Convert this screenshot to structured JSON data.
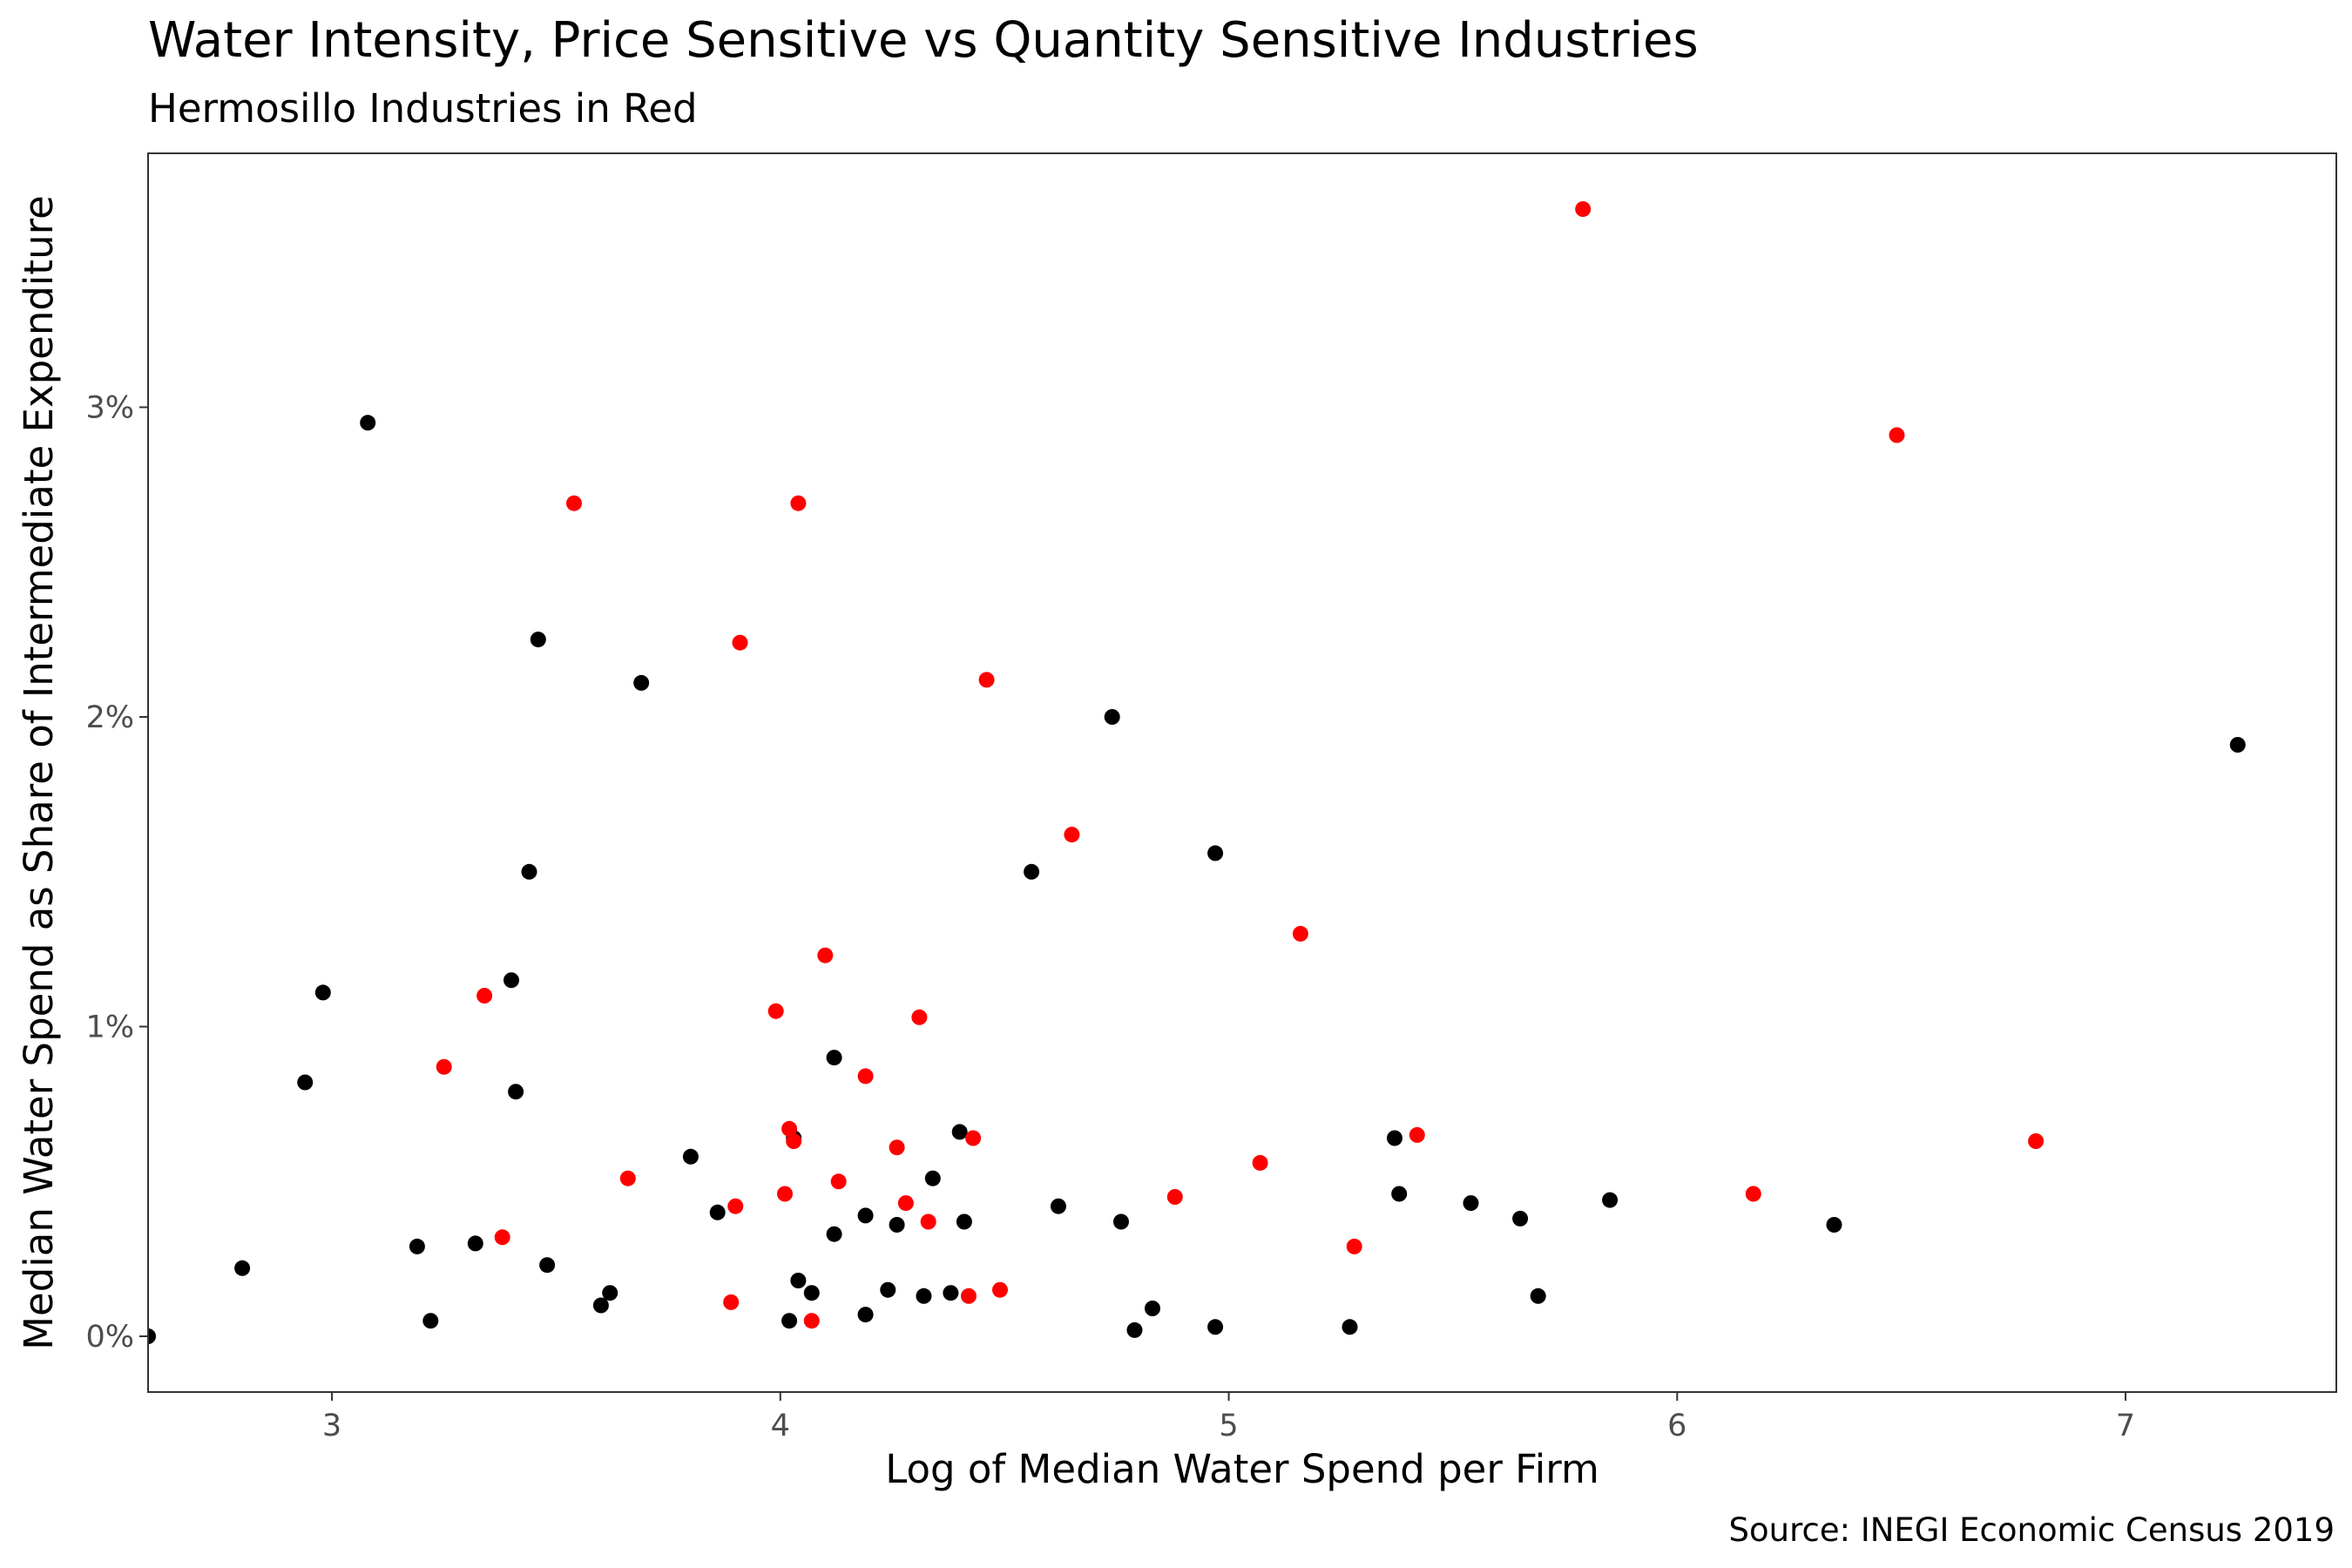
{
  "chart_data": {
    "type": "scatter",
    "title": "Water Intensity, Price Sensitive vs Quantity Sensitive Industries",
    "subtitle": "Hermosillo Industries in Red",
    "caption": "Source: INEGI Economic Census 2019",
    "xlabel": "Log of Median Water Spend per Firm",
    "ylabel": "Median Water Spend as Share of Intermediate Expenditure",
    "xlim": [
      2.59,
      7.47
    ],
    "ylim": [
      -0.0018,
      0.0382
    ],
    "x_ticks": [
      3,
      4,
      5,
      6,
      7
    ],
    "x_tick_labels": [
      "3",
      "4",
      "5",
      "6",
      "7"
    ],
    "y_ticks": [
      0,
      0.01,
      0.02,
      0.03
    ],
    "y_tick_labels": [
      "0%",
      "1%",
      "2%",
      "3%"
    ],
    "grid": false,
    "panel_border": true,
    "colors": {
      "other": "#000000",
      "hermosillo": "#ff0000"
    },
    "series": [
      {
        "color": "#000000",
        "points": [
          [
            2.59,
            0.0
          ],
          [
            2.8,
            0.0022
          ],
          [
            2.94,
            0.0082
          ],
          [
            2.98,
            0.0111
          ],
          [
            3.08,
            0.0295
          ],
          [
            3.19,
            0.0029
          ],
          [
            3.22,
            0.0005
          ],
          [
            3.32,
            0.003
          ],
          [
            3.4,
            0.0115
          ],
          [
            3.41,
            0.0079
          ],
          [
            3.44,
            0.015
          ],
          [
            3.46,
            0.0225
          ],
          [
            3.48,
            0.0023
          ],
          [
            3.6,
            0.001
          ],
          [
            3.62,
            0.0014
          ],
          [
            3.69,
            0.0211
          ],
          [
            3.8,
            0.0058
          ],
          [
            3.86,
            0.004
          ],
          [
            4.02,
            0.0005
          ],
          [
            4.03,
            0.0064
          ],
          [
            4.04,
            0.0018
          ],
          [
            4.07,
            0.0014
          ],
          [
            4.12,
            0.009
          ],
          [
            4.12,
            0.0033
          ],
          [
            4.19,
            0.0039
          ],
          [
            4.19,
            0.0007
          ],
          [
            4.24,
            0.0015
          ],
          [
            4.26,
            0.0036
          ],
          [
            4.32,
            0.0013
          ],
          [
            4.34,
            0.0051
          ],
          [
            4.38,
            0.0014
          ],
          [
            4.4,
            0.0066
          ],
          [
            4.41,
            0.0037
          ],
          [
            4.56,
            0.015
          ],
          [
            4.62,
            0.0042
          ],
          [
            4.74,
            0.02
          ],
          [
            4.76,
            0.0037
          ],
          [
            4.79,
            0.0002
          ],
          [
            4.83,
            0.0009
          ],
          [
            4.97,
            0.0156
          ],
          [
            4.97,
            0.0003
          ],
          [
            5.27,
            0.0003
          ],
          [
            5.37,
            0.0064
          ],
          [
            5.38,
            0.0046
          ],
          [
            5.54,
            0.0043
          ],
          [
            5.65,
            0.0038
          ],
          [
            5.69,
            0.0013
          ],
          [
            5.85,
            0.0044
          ],
          [
            6.35,
            0.0036
          ],
          [
            7.25,
            0.0191
          ]
        ]
      },
      {
        "color": "#ff0000",
        "points": [
          [
            3.25,
            0.0087
          ],
          [
            3.34,
            0.011
          ],
          [
            3.38,
            0.0032
          ],
          [
            3.54,
            0.0269
          ],
          [
            3.66,
            0.0051
          ],
          [
            3.89,
            0.0011
          ],
          [
            3.9,
            0.0042
          ],
          [
            3.91,
            0.0224
          ],
          [
            3.99,
            0.0105
          ],
          [
            4.01,
            0.0046
          ],
          [
            4.02,
            0.0067
          ],
          [
            4.03,
            0.0063
          ],
          [
            4.04,
            0.0269
          ],
          [
            4.07,
            0.0005
          ],
          [
            4.1,
            0.0123
          ],
          [
            4.13,
            0.005
          ],
          [
            4.19,
            0.0084
          ],
          [
            4.26,
            0.0061
          ],
          [
            4.28,
            0.0043
          ],
          [
            4.31,
            0.0103
          ],
          [
            4.33,
            0.0037
          ],
          [
            4.42,
            0.0013
          ],
          [
            4.43,
            0.0064
          ],
          [
            4.46,
            0.0212
          ],
          [
            4.49,
            0.0015
          ],
          [
            4.65,
            0.0162
          ],
          [
            4.88,
            0.0045
          ],
          [
            5.07,
            0.0056
          ],
          [
            5.16,
            0.013
          ],
          [
            5.28,
            0.0029
          ],
          [
            5.42,
            0.0065
          ],
          [
            5.79,
            0.0364
          ],
          [
            6.17,
            0.0046
          ],
          [
            6.49,
            0.0291
          ],
          [
            6.8,
            0.0063
          ]
        ]
      }
    ]
  }
}
